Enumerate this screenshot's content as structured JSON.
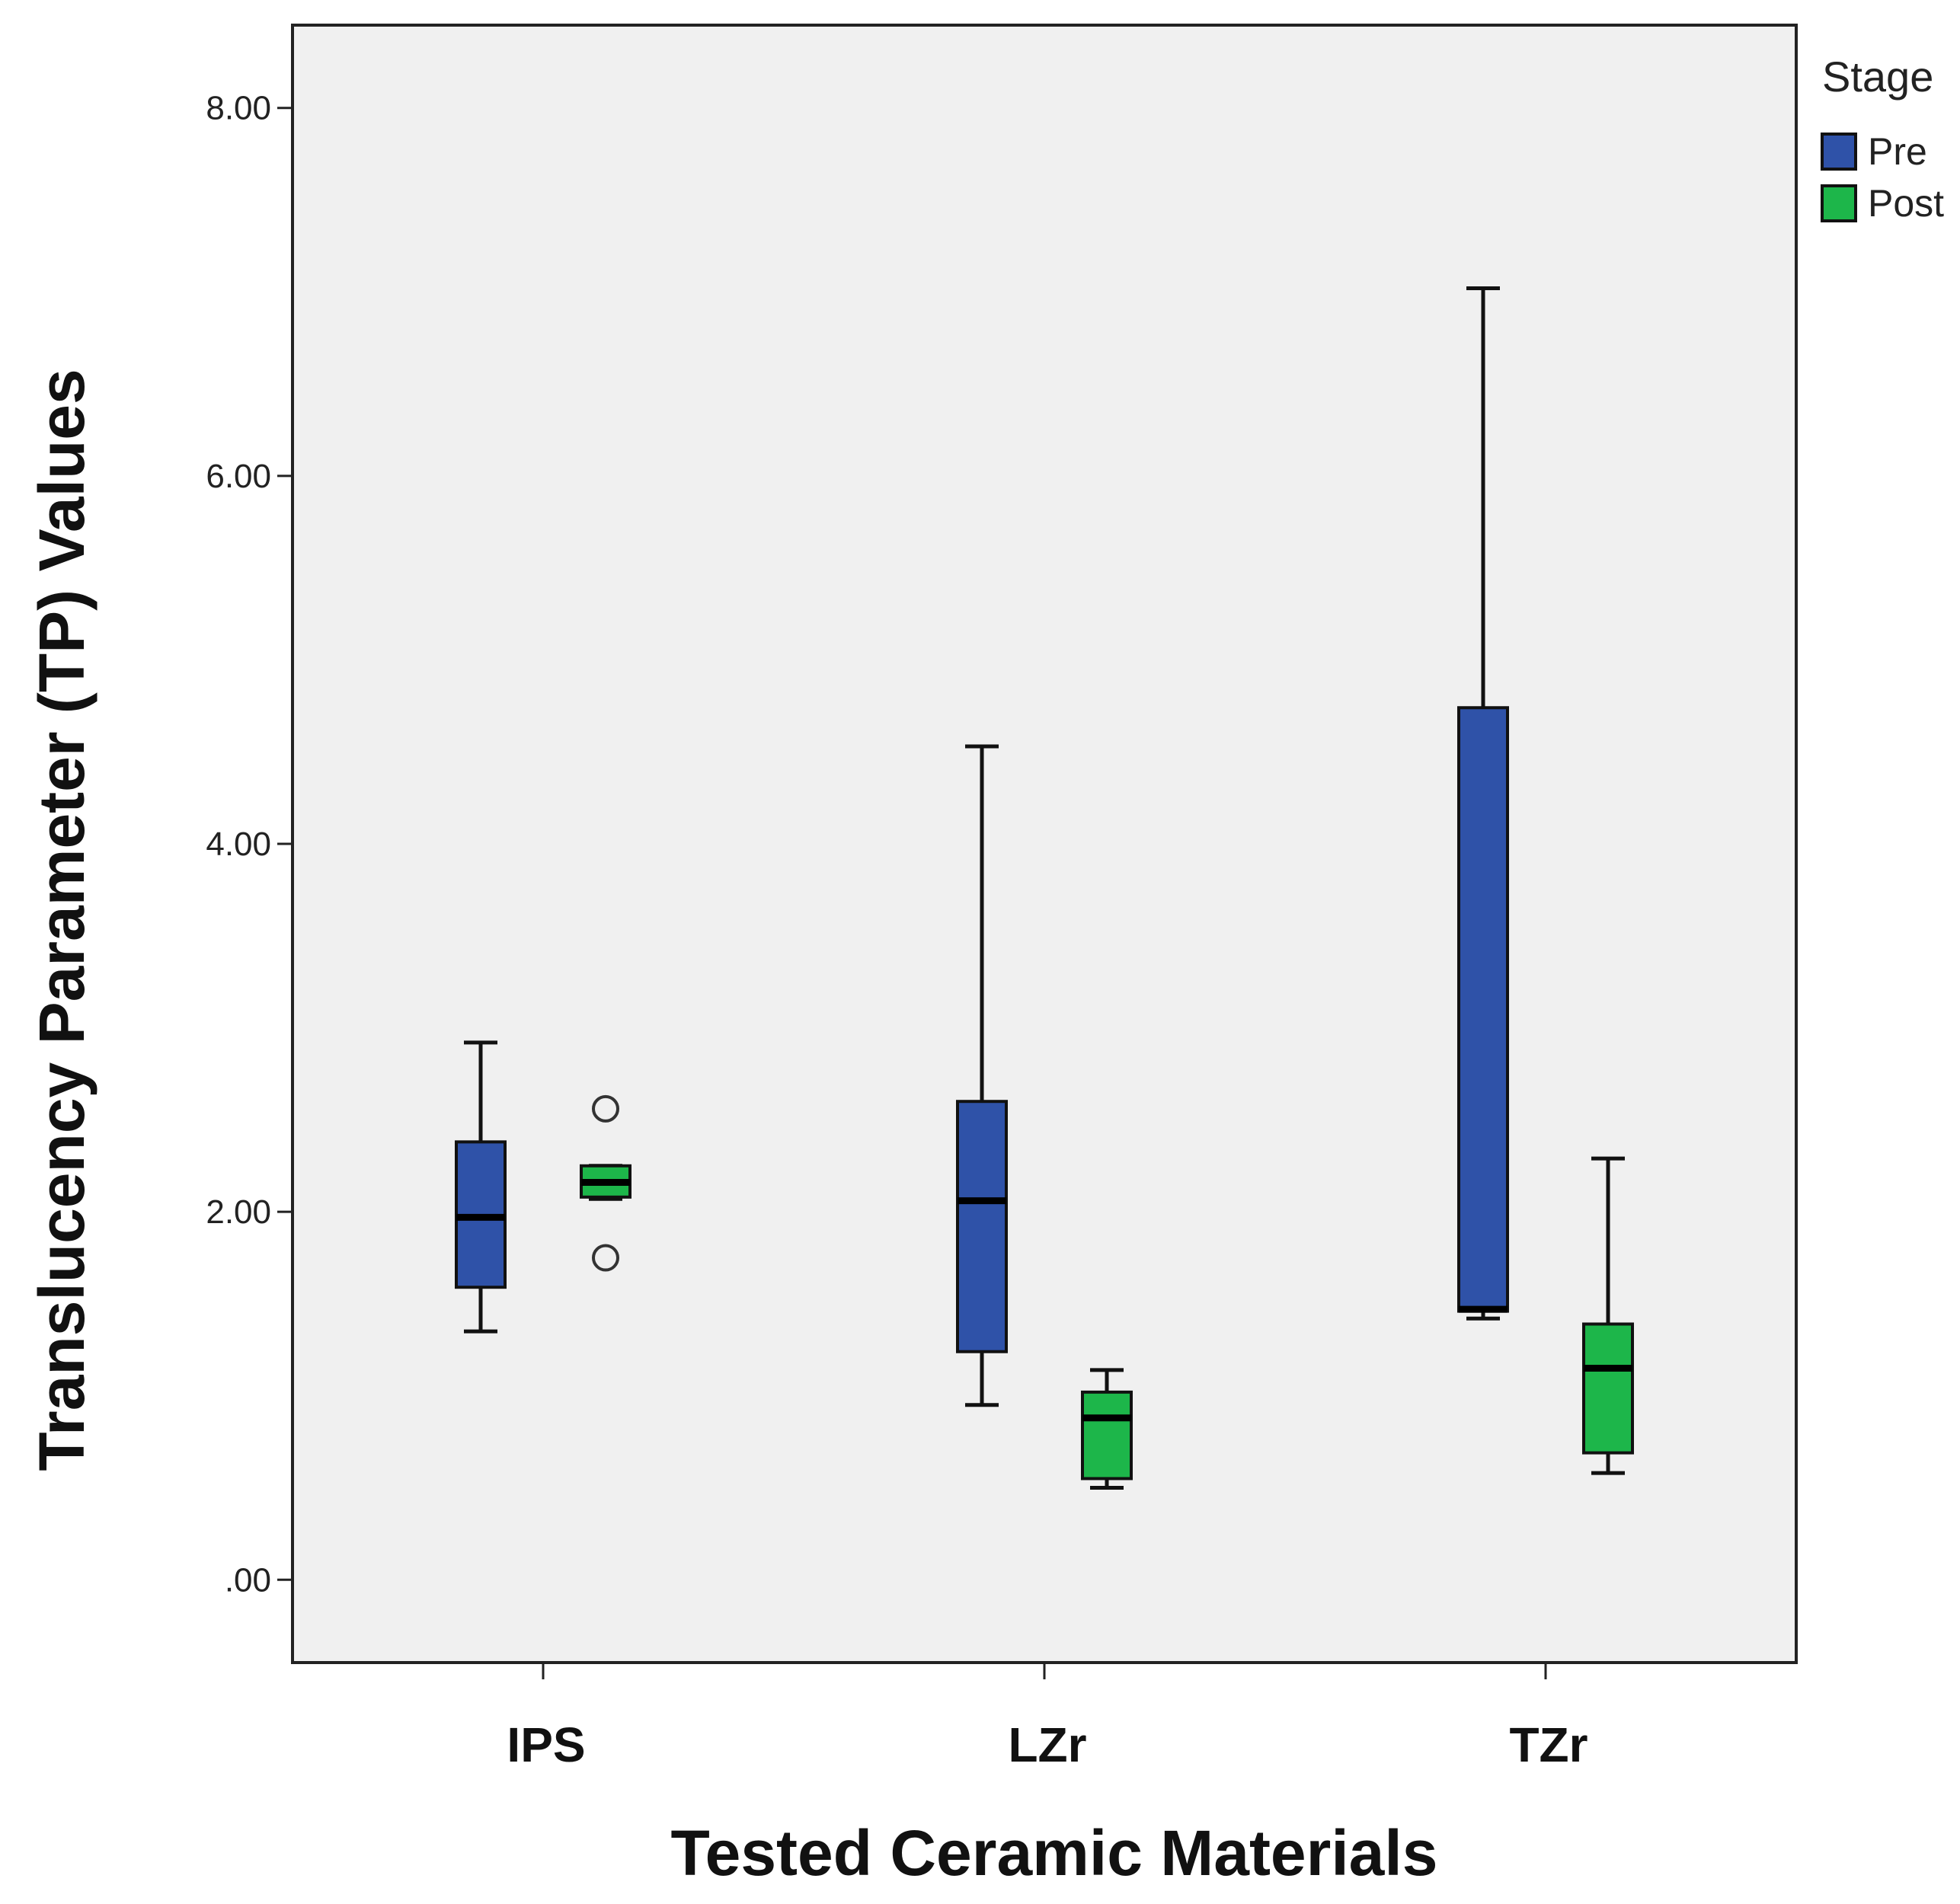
{
  "chart_data": {
    "type": "boxplot",
    "xlabel": "Tested Ceramic Materials",
    "ylabel": "Translucency Parameter (TP) Values",
    "ylim": [
      -0.45,
      8.45
    ],
    "yticks": [
      0,
      2,
      4,
      6,
      8
    ],
    "ytick_labels": [
      ".00",
      "2.00",
      "4.00",
      "6.00",
      "8.00"
    ],
    "categories": [
      "IPS",
      "LZr",
      "TZr"
    ],
    "legend": {
      "title": "Stage",
      "position": "top-right-outside"
    },
    "series": [
      {
        "name": "Pre",
        "color": "#2f52a8",
        "boxes": [
          {
            "min": 1.35,
            "q1": 1.59,
            "median": 1.97,
            "q3": 2.38,
            "max": 2.92,
            "outliers": []
          },
          {
            "min": 0.95,
            "q1": 1.24,
            "median": 2.06,
            "q3": 2.6,
            "max": 4.53,
            "outliers": []
          },
          {
            "min": 1.42,
            "q1": 1.46,
            "median": 1.47,
            "q3": 4.74,
            "max": 7.02,
            "outliers": []
          }
        ]
      },
      {
        "name": "Post",
        "color": "#1db64a",
        "boxes": [
          {
            "min": 2.07,
            "q1": 2.08,
            "median": 2.16,
            "q3": 2.25,
            "max": 2.25,
            "outliers": [
              2.56,
              1.75
            ]
          },
          {
            "min": 0.5,
            "q1": 0.55,
            "median": 0.88,
            "q3": 1.02,
            "max": 1.14,
            "outliers": []
          },
          {
            "min": 0.58,
            "q1": 0.69,
            "median": 1.15,
            "q3": 1.39,
            "max": 2.29,
            "outliers": []
          }
        ]
      }
    ]
  }
}
